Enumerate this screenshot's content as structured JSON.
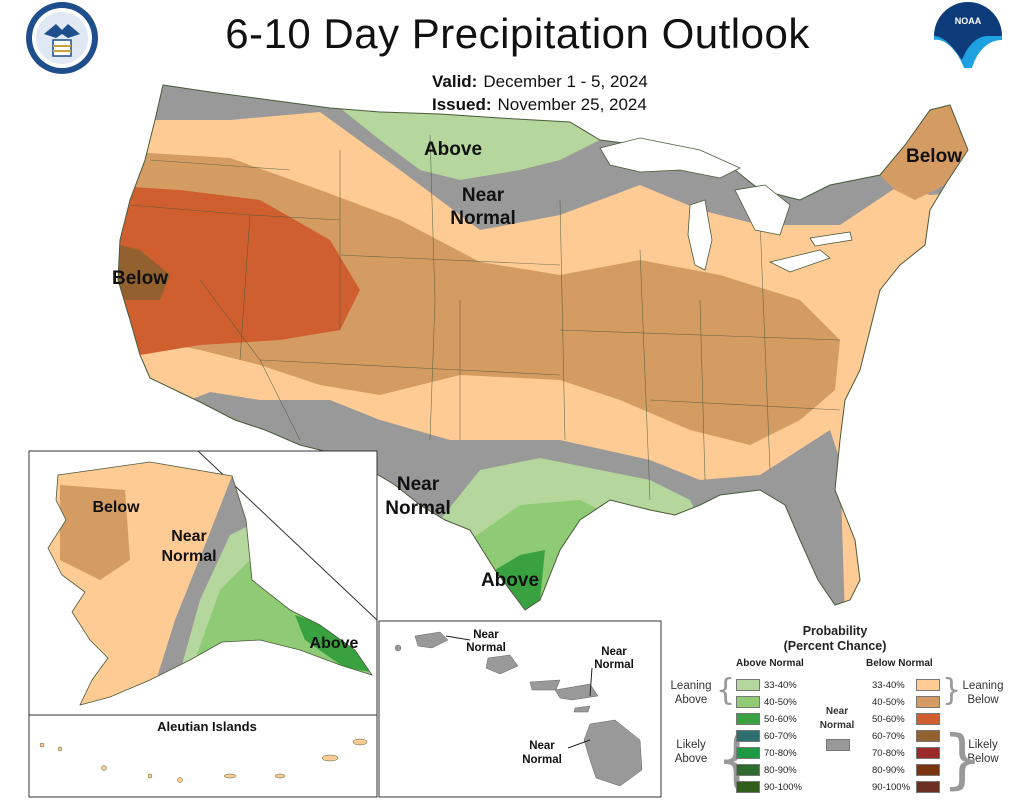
{
  "header": {
    "title": "6-10 Day Precipitation Outlook",
    "valid_label": "Valid:",
    "valid_value": "December 1 - 5, 2024",
    "issued_label": "Issued:",
    "issued_value": "November 25, 2024",
    "left_logo_icon": "department-of-commerce-seal",
    "right_logo_icon": "noaa-logo",
    "right_logo_text": "NOAA"
  },
  "colors": {
    "above_33_40": "#b5d69c",
    "above_40_50": "#8fcb74",
    "above_50_60": "#3aa140",
    "above_60_70": "#2e6e6e",
    "above_70_80": "#1e9a45",
    "above_80_90": "#2d6b2d",
    "above_90_100": "#2f5e1a",
    "below_33_40": "#fecb94",
    "below_40_50": "#d49b62",
    "below_50_60": "#cf5f2f",
    "below_60_70": "#93612f",
    "below_70_80": "#9b2b2b",
    "below_80_90": "#7a3510",
    "below_90_100": "#6b3022",
    "near_normal": "#999999",
    "map_border": "#4a5a3a"
  },
  "conus_labels": {
    "above_north": "Above",
    "near_north_1": "Near",
    "near_north_2": "Normal",
    "below_northeast": "Below",
    "below_west": "Below",
    "near_south_1": "Near",
    "near_south_2": "Normal",
    "above_south": "Above"
  },
  "alaska_labels": {
    "below": "Below",
    "near_1": "Near",
    "near_2": "Normal",
    "above": "Above",
    "aleutian": "Aleutian Islands"
  },
  "hawaii_labels": {
    "near_a1": "Near",
    "near_a2": "Normal",
    "near_b1": "Near",
    "near_b2": "Normal",
    "near_c1": "Near",
    "near_c2": "Normal"
  },
  "legend": {
    "title_1": "Probability",
    "title_2": "(Percent Chance)",
    "above_header": "Above Normal",
    "below_header": "Below Normal",
    "near_label_1": "Near",
    "near_label_2": "Normal",
    "leaning_above_1": "Leaning",
    "leaning_above_2": "Above",
    "likely_above_1": "Likely",
    "likely_above_2": "Above",
    "leaning_below_1": "Leaning",
    "leaning_below_2": "Below",
    "likely_below_1": "Likely",
    "likely_below_2": "Below",
    "ranges": [
      "33-40%",
      "40-50%",
      "50-60%",
      "60-70%",
      "70-80%",
      "80-90%",
      "90-100%"
    ]
  }
}
